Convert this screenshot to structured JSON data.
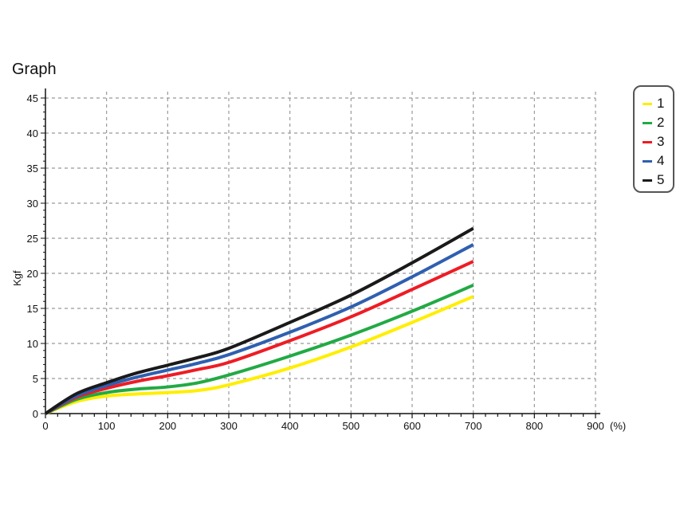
{
  "chart_data": {
    "type": "line",
    "title": "Graph",
    "xlabel": "(%)",
    "ylabel": "Kgf",
    "xlim": [
      0,
      900
    ],
    "ylim": [
      0,
      45
    ],
    "xticks": [
      0,
      100,
      200,
      300,
      400,
      500,
      600,
      700,
      800,
      900
    ],
    "yticks": [
      0,
      5,
      10,
      15,
      20,
      25,
      30,
      35,
      40,
      45
    ],
    "grid": true,
    "legend_position": "top-right",
    "x": [
      0,
      50,
      100,
      150,
      200,
      250,
      300,
      400,
      500,
      600,
      700
    ],
    "series": [
      {
        "name": "1",
        "color": "#ffee00",
        "values": [
          0,
          1.7,
          2.5,
          2.8,
          3.0,
          3.3,
          4.1,
          6.5,
          9.5,
          13.0,
          16.7
        ]
      },
      {
        "name": "2",
        "color": "#22aa44",
        "values": [
          0,
          2.0,
          3.0,
          3.5,
          3.8,
          4.4,
          5.5,
          8.2,
          11.2,
          14.6,
          18.3
        ]
      },
      {
        "name": "3",
        "color": "#ee1c24",
        "values": [
          0,
          2.3,
          3.6,
          4.6,
          5.4,
          6.3,
          7.3,
          10.4,
          13.8,
          17.7,
          21.7
        ]
      },
      {
        "name": "4",
        "color": "#2f5fb0",
        "values": [
          0,
          2.5,
          4.0,
          5.2,
          6.2,
          7.2,
          8.4,
          11.6,
          15.2,
          19.5,
          24.1
        ]
      },
      {
        "name": "5",
        "color": "#1a1a1a",
        "values": [
          0,
          2.8,
          4.4,
          5.8,
          6.9,
          8.0,
          9.3,
          13.0,
          16.9,
          21.5,
          26.4
        ]
      }
    ]
  }
}
